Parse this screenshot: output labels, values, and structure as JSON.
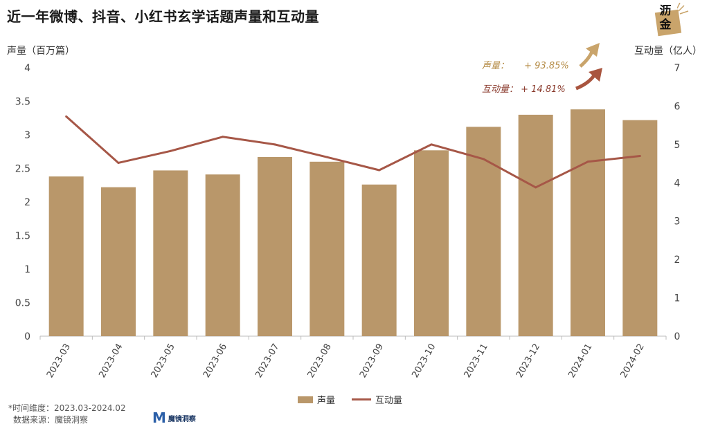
{
  "title": "近一年微博、抖音、小红书玄学话题声量和互动量",
  "logo": {
    "text": "沥金"
  },
  "annotations": [
    {
      "label": "声量：",
      "value": "+ 93.85%"
    },
    {
      "label": "互动量：",
      "value": "+ 14.81%"
    }
  ],
  "footnote": {
    "line1": "*时间维度：2023.03-2024.02",
    "line2": "数据来源：魔镜洞察"
  },
  "brand": {
    "mark": "M",
    "name": "魔镜洞察"
  },
  "colors": {
    "bar": "#b9976a",
    "line": "#a65747",
    "grid": "#e6e6e6",
    "axis": "#bbbbbb"
  },
  "chart_data": {
    "type": "bar",
    "categories": [
      "2023-03",
      "2023-04",
      "2023-05",
      "2023-06",
      "2023-07",
      "2023-08",
      "2023-09",
      "2023-10",
      "2023-11",
      "2023-12",
      "2024-01",
      "2024-02"
    ],
    "series": [
      {
        "name": "声量",
        "type": "bar",
        "axis": "left",
        "values": [
          2.38,
          2.22,
          2.47,
          2.41,
          2.67,
          2.6,
          2.26,
          2.77,
          3.12,
          3.3,
          3.38,
          3.22
        ]
      },
      {
        "name": "互动量",
        "type": "line",
        "axis": "right",
        "values": [
          5.73,
          4.52,
          4.83,
          5.2,
          5.0,
          4.67,
          4.33,
          5.0,
          4.62,
          3.88,
          4.55,
          4.7
        ]
      }
    ],
    "y_left": {
      "label": "声量（百万篇）",
      "lim": [
        0,
        4
      ],
      "ticks": [
        "0",
        "0.5",
        "1",
        "1.5",
        "2",
        "2.5",
        "3",
        "3.5",
        "4"
      ]
    },
    "y_right": {
      "label": "互动量（亿人）",
      "lim": [
        0,
        7
      ],
      "ticks": [
        "0",
        "1",
        "2",
        "3",
        "4",
        "5",
        "6",
        "7"
      ]
    },
    "grid": false,
    "legend_position": "bottom-center"
  }
}
